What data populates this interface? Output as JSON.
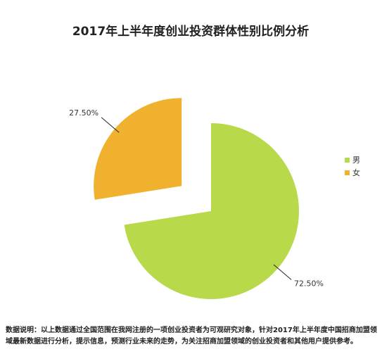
{
  "chart_data": {
    "type": "pie",
    "title": "2017年上半年度创业投资群体性别比例分析",
    "categories": [
      "男",
      "女"
    ],
    "values": [
      72.5,
      27.5
    ],
    "value_labels": [
      "72.50%",
      "27.50%"
    ],
    "colors": [
      "#b8d94a",
      "#f0b22e"
    ],
    "explode": [
      false,
      true
    ]
  },
  "note": "数据说明：以上数据通过全国范围在我网注册的一项创业投资者为可观研究对象，针对2017年上半年度中国招商加盟领域最新数据进行分析，提示信息，预测行业未来的走势，为关注招商加盟领域的创业投资者和其他用户提供参考。"
}
